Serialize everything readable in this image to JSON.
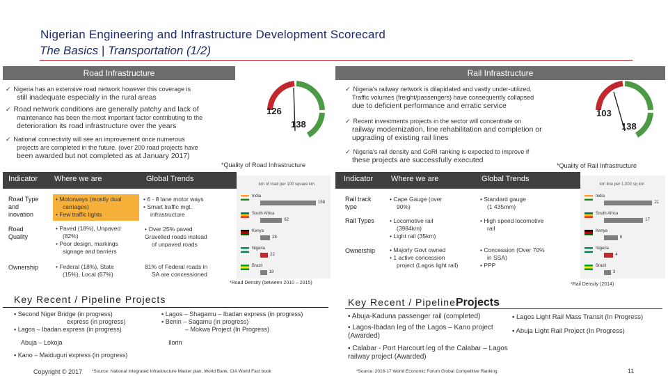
{
  "header": {
    "title": "Nigerian Engineering and Infrastructure Development Scorecard",
    "subtitle": "The Basics | Transportation (1/2)"
  },
  "road": {
    "section_title": "Road Infrastructure",
    "bullets": [
      {
        "small": "Nigeria has an extensive road network however this coverage is",
        "big": "still inadequate especially in the rural areas"
      },
      {
        "small": "",
        "big": "Road network conditions are generally patchy and lack of",
        "small2": "maintenance has been the most important factor contributing to the",
        "big2": "deterioration its road infrastructure over the years"
      },
      {
        "small": "National connectivity will see an improvement once numerous",
        "small2": "projects are completed in the future. (over 200 road projects have",
        "big": "been awarded but not completed as at January 2017)"
      }
    ],
    "gauge_value_a": "126",
    "gauge_value_b": "138",
    "quality_label": "*Quality of Road Infrastructure",
    "table": {
      "headers": [
        "Indicator",
        "Where we are",
        "Global Trends"
      ],
      "rows": [
        {
          "indicator": [
            "Road Type",
            "and",
            "inovation"
          ],
          "where": [
            "• Motorways (mostly dual",
            "carriages)",
            "• Few traffic lights"
          ],
          "global": [
            "• 6 - 8 lane motor ways",
            "• Smart traffic mgt.",
            "infrastructure"
          ]
        },
        {
          "indicator": [
            "Road",
            "Quality"
          ],
          "where": [
            "• Paved (18%), Unpaved",
            "(82%)",
            "• Poor design, markings",
            "signage and barriers"
          ],
          "global": [
            "• Over 25% paved",
            "Gravelled roads instead",
            "of unpaved roads"
          ]
        },
        {
          "indicator": [
            "Ownership"
          ],
          "where": [
            "• Federal (18%), State",
            "(15%), Local (67%)"
          ],
          "global": [
            "81% of Federal roads in",
            "SA are concessioned"
          ]
        }
      ]
    },
    "chart_source": "*Road Density (between 2010 – 2015)",
    "chart_title": "km of road per 100 square km",
    "key_title": "Key Recent / Pipeline Projects",
    "key_left": [
      "Second Niger Bridge (in progress)",
      "express (in progress)",
      "Lagos – Ibadan express (in progress)",
      "Abuja – Lokoja",
      "Kano – Maiduguri express (in progress)"
    ],
    "key_right": [
      "Lagos – Shagamu – Ibadan express (in progress)",
      "Benin – Sagamu (in progress)",
      "– Mokwa Project (In Progress)",
      "Ilorin"
    ]
  },
  "rail": {
    "section_title": "Rail Infrastructure",
    "bullets": [
      {
        "small": "Nigeria's railway network is dilapidated and vastly under-utilized.",
        "small2": "Traffic volumes (freight/passengers) have consequently collapsed",
        "big": "due to deficient performance and erratic service"
      },
      {
        "small": "Recent investments projects in the sector will concentrate on",
        "big": "railway modernization, line rehabilitation and completion or",
        "big2": "upgrading of existing rail lines"
      },
      {
        "small": "Nigeria's rail density and GoRI ranking is expected to improve if",
        "big": "these projects are successfully executed"
      }
    ],
    "gauge_value_a": "103",
    "gauge_value_b": "138",
    "quality_label": "*Quality of Rail Infrastructure",
    "table": {
      "headers": [
        "Indicator",
        "Where we are",
        "Global Trends"
      ],
      "rows": [
        {
          "indicator": [
            "Rail track",
            "type"
          ],
          "where": [
            "• Cape Gauge (over",
            "90%)"
          ],
          "global": [
            "• Standard gauge",
            "(1 435mm)"
          ]
        },
        {
          "indicator": [
            "Rail Types"
          ],
          "where": [
            "• Locomotive rail",
            "(3984km)",
            "• Light rail (35km)"
          ],
          "global": [
            "• High speed locomotive",
            "rail"
          ]
        },
        {
          "indicator": [
            "Ownership"
          ],
          "where": [
            "• Majorly Govt owned",
            "• 1 active concession",
            "project (Lagos light rail)"
          ],
          "global": [
            "• Concession (Over 70%",
            "in SSA)",
            "• PPP"
          ]
        }
      ]
    },
    "chart_source": "*Rail Density (2014)",
    "chart_title": "km line per 1,000 sq km",
    "key_title_a": "Key Recent / Pipeline",
    "key_title_b": "Projects",
    "key_left": [
      "Abuja-Kaduna passenger rail (completed)",
      "Lagos-Ibadan leg of the Lagos – Kano project (Awarded)",
      "Calabar - Port Harcourt leg of the Calabar – Lagos railway project (Awarded)"
    ],
    "key_right": [
      "Lagos Light Rail Mass Transit (In Progress)",
      "Abuja Light Rail Project (In Progress)"
    ]
  },
  "footer": {
    "copyright": "Copyright © 2017",
    "left_source": "*Source: National Integrated Infrastructure Master plan, World Bank, CIA World Fact book",
    "right_source": "*Source: 2016-17 World Economic Forum Global Competitive Ranking",
    "page": "11"
  },
  "chart_data": [
    {
      "type": "bar",
      "title": "km of road per 100 square km",
      "categories": [
        "India",
        "South Africa",
        "Kenya",
        "Nigeria",
        "Brazil"
      ],
      "values": [
        158,
        62,
        28,
        22,
        19
      ],
      "xlim": [
        0,
        170
      ]
    },
    {
      "type": "bar",
      "title": "km line per 1,000 sq km",
      "categories": [
        "India",
        "South Africa",
        "Kenya",
        "Nigeria",
        "Brazil"
      ],
      "values": [
        21,
        17,
        6,
        4,
        3
      ],
      "xlim": [
        0,
        23
      ]
    }
  ],
  "colors": {
    "accent": "#b8262e",
    "title": "#1f2a6b",
    "highlight": "#f7b13a",
    "section_bar": "#6d6d6d",
    "table_header": "#404040",
    "gauge_red": "#c1282d",
    "gauge_green": "#4c9a46"
  }
}
